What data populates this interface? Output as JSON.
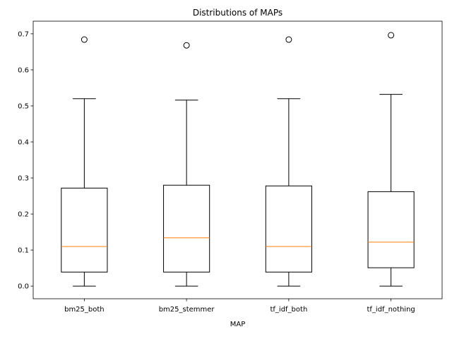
{
  "chart_data": {
    "type": "boxplot",
    "title": "Distributions of MAPs",
    "xlabel": "MAP",
    "ylabel": "",
    "ylim": [
      -0.035,
      0.735
    ],
    "yticks": [
      0.0,
      0.1,
      0.2,
      0.3,
      0.4,
      0.5,
      0.6,
      0.7
    ],
    "ytick_labels": [
      "0.0",
      "0.1",
      "0.2",
      "0.3",
      "0.4",
      "0.5",
      "0.6",
      "0.7"
    ],
    "grid": false,
    "median_color": "#ff7f0e",
    "box_color": "#000000",
    "categories": [
      "bm25_both",
      "bm25_stemmer",
      "tf_idf_both",
      "tf_idf_nothing"
    ],
    "boxes": [
      {
        "label": "bm25_both",
        "whisker_low": 0.0,
        "q1": 0.039,
        "median": 0.11,
        "q3": 0.272,
        "whisker_high": 0.52,
        "outliers": [
          0.684
        ]
      },
      {
        "label": "bm25_stemmer",
        "whisker_low": 0.0,
        "q1": 0.039,
        "median": 0.134,
        "q3": 0.28,
        "whisker_high": 0.516,
        "outliers": [
          0.668
        ]
      },
      {
        "label": "tf_idf_both",
        "whisker_low": 0.0,
        "q1": 0.039,
        "median": 0.11,
        "q3": 0.278,
        "whisker_high": 0.52,
        "outliers": [
          0.684
        ]
      },
      {
        "label": "tf_idf_nothing",
        "whisker_low": 0.0,
        "q1": 0.051,
        "median": 0.122,
        "q3": 0.262,
        "whisker_high": 0.532,
        "outliers": [
          0.696
        ]
      }
    ]
  }
}
